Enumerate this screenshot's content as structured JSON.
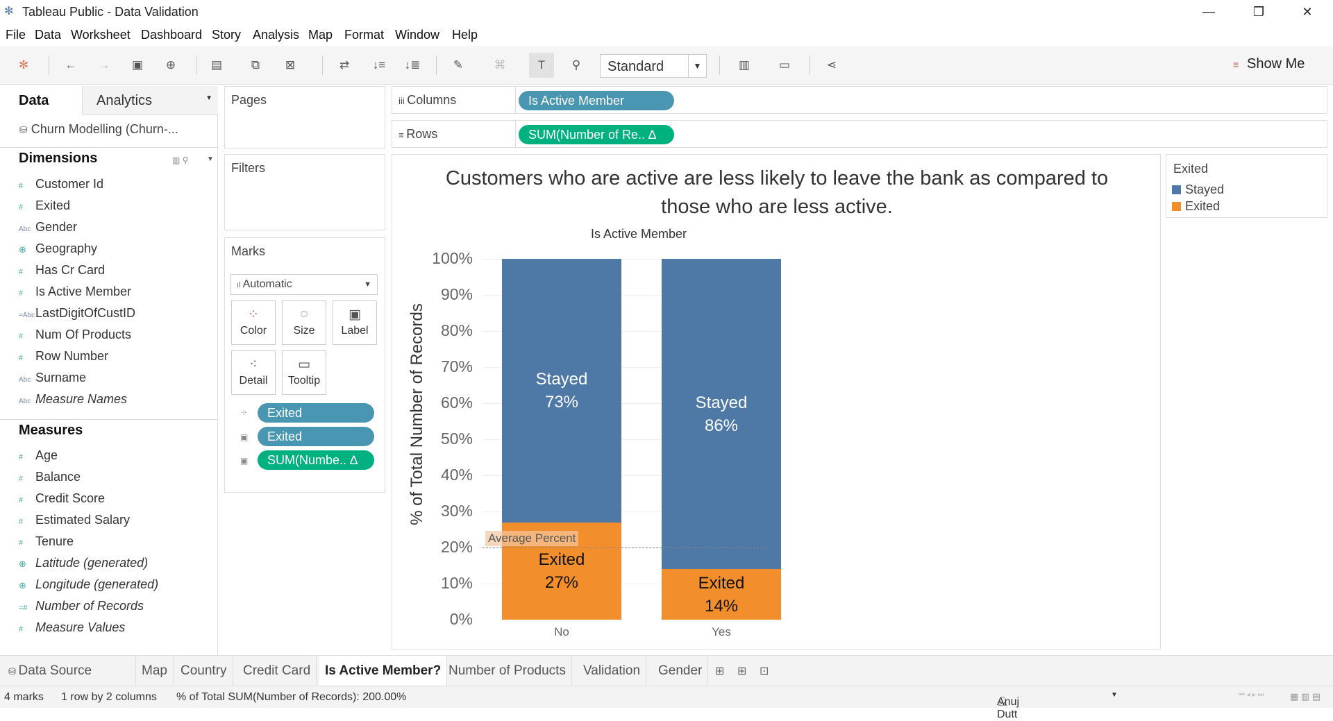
{
  "window": {
    "title": "Tableau Public - Data Validation"
  },
  "menu": [
    "File",
    "Data",
    "Worksheet",
    "Dashboard",
    "Story",
    "Analysis",
    "Map",
    "Format",
    "Window",
    "Help"
  ],
  "toolbar": {
    "fit_value": "Standard",
    "show_me": "Show Me"
  },
  "left_panel": {
    "tab_data": "Data",
    "tab_analytics": "Analytics",
    "datasource": "Churn Modelling (Churn-...",
    "dimensions_title": "Dimensions",
    "dimensions": [
      {
        "label": "Customer Id",
        "icon": "#"
      },
      {
        "label": "Exited",
        "icon": "#"
      },
      {
        "label": "Gender",
        "icon": "Abc"
      },
      {
        "label": "Geography",
        "icon": "⊕"
      },
      {
        "label": "Has Cr Card",
        "icon": "#"
      },
      {
        "label": "Is Active Member",
        "icon": "#"
      },
      {
        "label": "LastDigitOfCustID",
        "icon": "=Abc"
      },
      {
        "label": "Num Of Products",
        "icon": "#"
      },
      {
        "label": "Row Number",
        "icon": "#"
      },
      {
        "label": "Surname",
        "icon": "Abc"
      },
      {
        "label": "Measure Names",
        "icon": "Abc"
      }
    ],
    "measures_title": "Measures",
    "measures": [
      {
        "label": "Age",
        "icon": "#"
      },
      {
        "label": "Balance",
        "icon": "#"
      },
      {
        "label": "Credit Score",
        "icon": "#"
      },
      {
        "label": "Estimated Salary",
        "icon": "#"
      },
      {
        "label": "Tenure",
        "icon": "#"
      },
      {
        "label": "Latitude (generated)",
        "icon": "⊕"
      },
      {
        "label": "Longitude (generated)",
        "icon": "⊕"
      },
      {
        "label": "Number of Records",
        "icon": "=#"
      },
      {
        "label": "Measure Values",
        "icon": "#"
      }
    ]
  },
  "cards": {
    "pages": "Pages",
    "filters": "Filters",
    "marks": "Marks",
    "mark_type": "Automatic",
    "mark_buttons": [
      "Color",
      "Size",
      "Label",
      "Detail",
      "Tooltip"
    ],
    "mark_pills": [
      "Exited",
      "Exited",
      "SUM(Numbe.. ∆"
    ]
  },
  "shelves": {
    "columns_label": "Columns",
    "columns_pill": "Is Active Member",
    "rows_label": "Rows",
    "rows_pill": "SUM(Number of Re.. ∆"
  },
  "view": {
    "title_line1": "Customers who are active are less likely to leave the bank as compared to",
    "title_line2": "those who are less active.",
    "column_header": "Is Active Member",
    "y_axis_label": "% of Total Number of Records",
    "ref_label": "Average Percent"
  },
  "chart_data": {
    "type": "bar",
    "stacked": true,
    "categories": [
      "No",
      "Yes"
    ],
    "series": [
      {
        "name": "Exited",
        "values": [
          27,
          14
        ],
        "color": "#f28e2b",
        "labels": [
          "Exited",
          "Exited"
        ]
      },
      {
        "name": "Stayed",
        "values": [
          73,
          86
        ],
        "color": "#4e79a7",
        "labels": [
          "Stayed",
          "Stayed"
        ]
      }
    ],
    "ylim": [
      0,
      100
    ],
    "yticks": [
      "0%",
      "10%",
      "20%",
      "30%",
      "40%",
      "50%",
      "60%",
      "70%",
      "80%",
      "90%",
      "100%"
    ],
    "reference_line": {
      "label": "Average Percent",
      "value": 20
    },
    "xlabel": "Is Active Member",
    "ylabel": "% of Total Number of Records",
    "grid": true
  },
  "legend": {
    "title": "Exited",
    "items": [
      {
        "label": "Stayed",
        "color": "#4e79a7"
      },
      {
        "label": "Exited",
        "color": "#f28e2b"
      }
    ]
  },
  "sheet_tabs": [
    "Data Source",
    "Map",
    "Country",
    "Credit Card",
    "Is Active Member?",
    "Number of Products",
    "Validation",
    "Gender"
  ],
  "active_tab": "Is Active Member?",
  "status": {
    "marks": "4 marks",
    "layout": "1 row by 2 columns",
    "sum": "% of Total SUM(Number of Records): 200.00%",
    "user": "Anuj Dutt"
  }
}
